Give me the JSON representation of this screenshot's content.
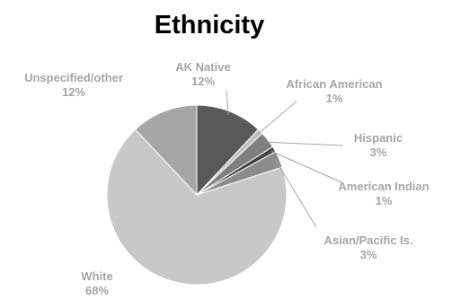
{
  "chart_data": {
    "type": "pie",
    "title": "Ethnicity",
    "slices": [
      {
        "label": "AK Native",
        "value": 12,
        "value_label": "12%",
        "color": "#595959"
      },
      {
        "label": "African American",
        "value": 1,
        "value_label": "1%",
        "color": "#bfbfbf"
      },
      {
        "label": "Hispanic",
        "value": 3,
        "value_label": "3%",
        "color": "#7f7f7f"
      },
      {
        "label": "American Indian",
        "value": 1,
        "value_label": "1%",
        "color": "#404040"
      },
      {
        "label": "Asian/Pacific Is.",
        "value": 3,
        "value_label": "3%",
        "color": "#8c8c8c"
      },
      {
        "label": "White",
        "value": 68,
        "value_label": "68%",
        "color": "#c8c8c8"
      },
      {
        "label": "Unspecified/other",
        "value": 12,
        "value_label": "12%",
        "color": "#a6a6a6"
      }
    ],
    "label_color": "#a6a6a6",
    "legend": "none"
  }
}
